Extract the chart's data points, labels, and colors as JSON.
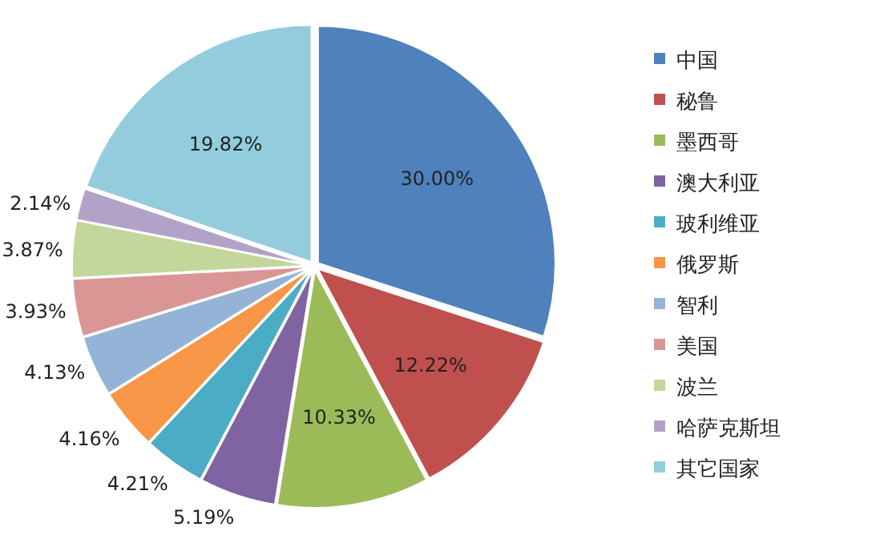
{
  "chart_data": {
    "type": "pie",
    "categories": [
      "中国",
      "秘鲁",
      "墨西哥",
      "澳大利亚",
      "玻利维亚",
      "俄罗斯",
      "智利",
      "美国",
      "波兰",
      "哈萨克斯坦",
      "其它国家"
    ],
    "values": [
      30.0,
      12.22,
      10.33,
      5.19,
      4.21,
      4.16,
      4.13,
      3.93,
      3.87,
      2.14,
      19.82
    ],
    "value_labels": [
      "30.00%",
      "12.22%",
      "10.33%",
      "5.19%",
      "4.21%",
      "4.16%",
      "4.13%",
      "3.93%",
      "3.87%",
      "2.14%",
      "19.82%"
    ],
    "colors": [
      "#4f81bd",
      "#c0504d",
      "#9bbb59",
      "#8064a2",
      "#4bacc6",
      "#f79646",
      "#95b3d7",
      "#d99694",
      "#c3d69b",
      "#b3a2c7",
      "#93cddd"
    ],
    "legend": "right"
  }
}
